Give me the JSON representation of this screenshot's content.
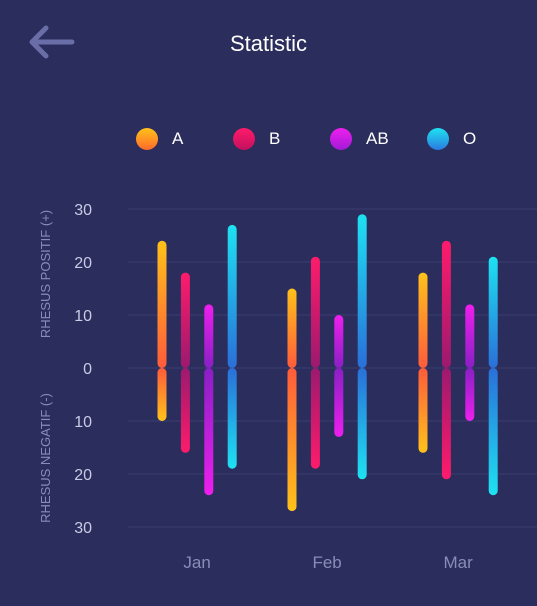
{
  "header": {
    "title": "Statistic",
    "back_icon": "arrow-left-icon"
  },
  "colors": {
    "background": "#2b2d5c",
    "grid": "#3a3d6e",
    "axis_text": "#8a8cb8"
  },
  "chart_data": {
    "type": "bar",
    "subtype": "floating-range",
    "categories": [
      "Jan",
      "Feb",
      "Mar"
    ],
    "ylabel_top": "RHESUS POSITIF (+)",
    "ylabel_bottom": "RHESUS NEGATIF (-)",
    "yticks": [
      "30",
      "20",
      "10",
      "0",
      "10",
      "20",
      "30"
    ],
    "ylim": [
      -30,
      30
    ],
    "grid": true,
    "legend_position": "top",
    "series": [
      {
        "name": "A",
        "color_top": "#ffc21a",
        "color_bottom": "#ff5c3a",
        "positive": [
          24,
          15,
          18
        ],
        "negative": [
          10,
          27,
          16
        ]
      },
      {
        "name": "B",
        "color_top": "#ff1b6b",
        "color_bottom": "#9b1a6e",
        "positive": [
          18,
          21,
          24
        ],
        "negative": [
          16,
          19,
          21
        ]
      },
      {
        "name": "AB",
        "color_top": "#ee1fee",
        "color_bottom": "#8a1fc4",
        "positive": [
          12,
          10,
          12
        ],
        "negative": [
          24,
          13,
          10
        ]
      },
      {
        "name": "O",
        "color_top": "#1ee2f2",
        "color_bottom": "#2a6fd8",
        "positive": [
          27,
          29,
          21
        ],
        "negative": [
          19,
          21,
          24
        ]
      }
    ]
  }
}
